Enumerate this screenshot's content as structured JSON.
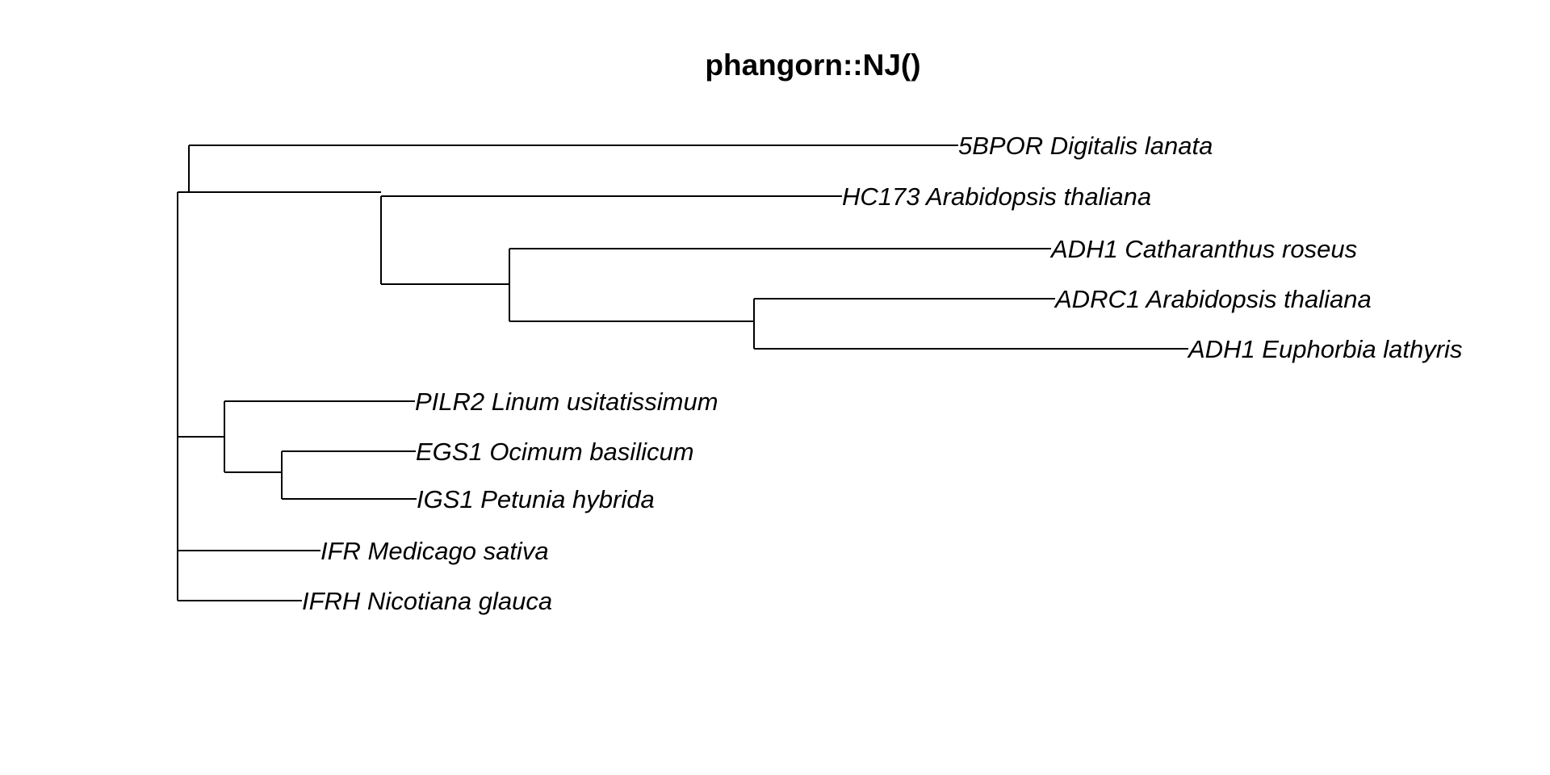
{
  "title": "phangorn::NJ()",
  "tree": {
    "method": "neighbor-joining",
    "layout": "rectangular phylogram, unrooted drawn with basal trichotomy",
    "newick": "((5BPOR Digitalis lanata,(HC173 Arabidopsis thaliana,(ADH1 Catharanthus roseus,(ADRC1 Arabidopsis thaliana,ADH1 Euphorbia lathyris)))),(PILR2 Linum usitatissimum,(EGS1 Ocimum basilicum,IGS1 Petunia hybrida)),IFR Medicago sativa,IFRH Nicotiana glauca);",
    "tips": [
      "5BPOR Digitalis lanata",
      "HC173 Arabidopsis thaliana",
      "ADH1 Catharanthus roseus",
      "ADRC1 Arabidopsis thaliana",
      "ADH1 Euphorbia lathyris",
      "PILR2 Linum usitatissimum",
      "EGS1 Ocimum basilicum",
      "IGS1 Petunia hybrida",
      "IFR Medicago sativa",
      "IFRH Nicotiana glauca"
    ]
  },
  "colors": {
    "line": "#000000",
    "text": "#000000",
    "background": "#ffffff"
  }
}
